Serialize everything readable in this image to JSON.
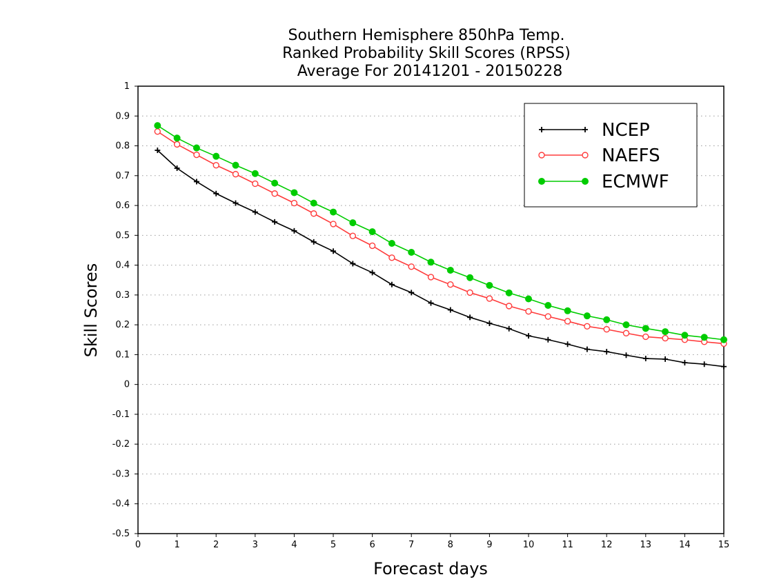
{
  "chart_data": {
    "type": "line",
    "title_lines": [
      "Southern Hemisphere 850hPa Temp.",
      "Ranked Probability Skill Scores (RPSS)",
      "Average For 20141201 - 20150228"
    ],
    "xlabel": "Forecast days",
    "ylabel": "Skill Scores",
    "xlim": [
      0,
      15
    ],
    "ylim": [
      -0.5,
      1
    ],
    "x_ticks": [
      "0",
      "1",
      "2",
      "3",
      "4",
      "5",
      "6",
      "7",
      "8",
      "9",
      "10",
      "11",
      "12",
      "13",
      "14",
      "15"
    ],
    "y_ticks": [
      "1",
      "0.9",
      "0.8",
      "0.7",
      "0.6",
      "0.5",
      "0.4",
      "0.3",
      "0.2",
      "0.1",
      "0",
      "-0.1",
      "-0.2",
      "-0.3",
      "-0.4",
      "-0.5"
    ],
    "grid": "horizontal dotted",
    "legend_position": "top-right",
    "x": [
      0.5,
      1,
      1.5,
      2,
      2.5,
      3,
      3.5,
      4,
      4.5,
      5,
      5.5,
      6,
      6.5,
      7,
      7.5,
      8,
      8.5,
      9,
      9.5,
      10,
      10.5,
      11,
      11.5,
      12,
      12.5,
      13,
      13.5,
      14,
      14.5,
      15
    ],
    "series": [
      {
        "name": "NCEP",
        "color": "#000000",
        "marker": "plus",
        "values": [
          0.785,
          0.725,
          0.68,
          0.64,
          0.608,
          0.578,
          0.545,
          0.515,
          0.478,
          0.447,
          0.405,
          0.375,
          0.335,
          0.308,
          0.273,
          0.25,
          0.225,
          0.205,
          0.187,
          0.163,
          0.15,
          0.135,
          0.118,
          0.11,
          0.098,
          0.087,
          0.085,
          0.073,
          0.068,
          0.06
        ]
      },
      {
        "name": "NAEFS",
        "color": "#ff3b3b",
        "marker": "open-circle",
        "values": [
          0.848,
          0.805,
          0.77,
          0.735,
          0.705,
          0.673,
          0.64,
          0.608,
          0.573,
          0.538,
          0.498,
          0.465,
          0.425,
          0.395,
          0.36,
          0.335,
          0.308,
          0.288,
          0.263,
          0.245,
          0.228,
          0.212,
          0.195,
          0.185,
          0.172,
          0.16,
          0.155,
          0.15,
          0.143,
          0.137
        ]
      },
      {
        "name": "ECMWF",
        "color": "#00cc00",
        "marker": "filled-circle",
        "values": [
          0.868,
          0.826,
          0.793,
          0.765,
          0.735,
          0.707,
          0.675,
          0.643,
          0.608,
          0.578,
          0.542,
          0.512,
          0.473,
          0.443,
          0.41,
          0.383,
          0.358,
          0.332,
          0.307,
          0.287,
          0.265,
          0.247,
          0.23,
          0.217,
          0.2,
          0.188,
          0.177,
          0.165,
          0.158,
          0.15
        ]
      }
    ]
  }
}
